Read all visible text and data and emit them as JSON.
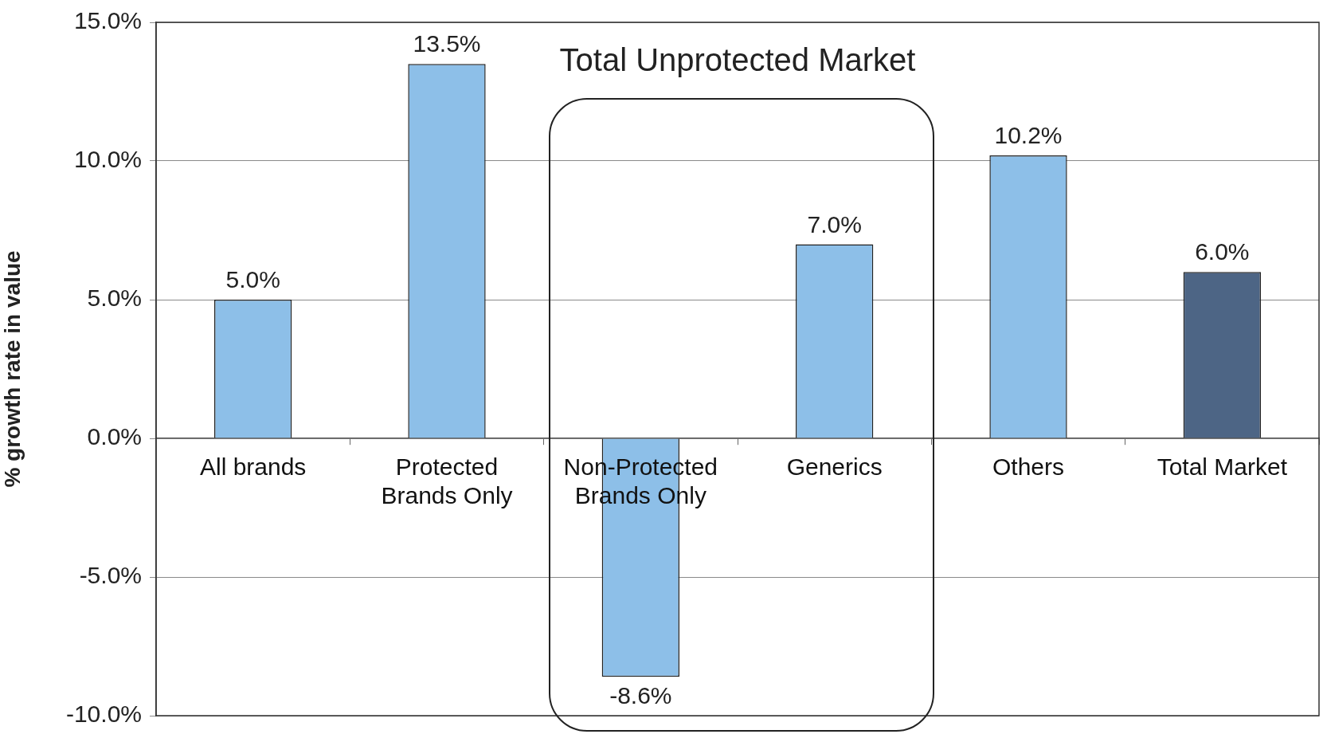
{
  "chart_data": {
    "type": "bar",
    "categories": [
      "All brands",
      "Protected Brands Only",
      "Non-Protected Brands Only",
      "Generics",
      "Others",
      "Total Market"
    ],
    "values": [
      5.0,
      13.5,
      -8.6,
      7.0,
      10.2,
      6.0
    ],
    "colors": [
      "#8dbfe8",
      "#8dbfe8",
      "#8dbfe8",
      "#8dbfe8",
      "#8dbfe8",
      "#4d6585"
    ],
    "value_labels": [
      "5.0%",
      "13.5%",
      "-8.6%",
      "7.0%",
      "10.2%",
      "6.0%"
    ],
    "ylabel": "% growth rate in value",
    "ylim": [
      -10,
      15
    ],
    "yticks": [
      {
        "value": -10,
        "label": "-10.0%"
      },
      {
        "value": -5,
        "label": "-5.0%"
      },
      {
        "value": 0,
        "label": "0.0%"
      },
      {
        "value": 5,
        "label": "5.0%"
      },
      {
        "value": 10,
        "label": "10.0%"
      },
      {
        "value": 15,
        "label": "15.0%"
      }
    ],
    "grid": "y",
    "annotations": [
      "Total Unprotected Market"
    ]
  }
}
